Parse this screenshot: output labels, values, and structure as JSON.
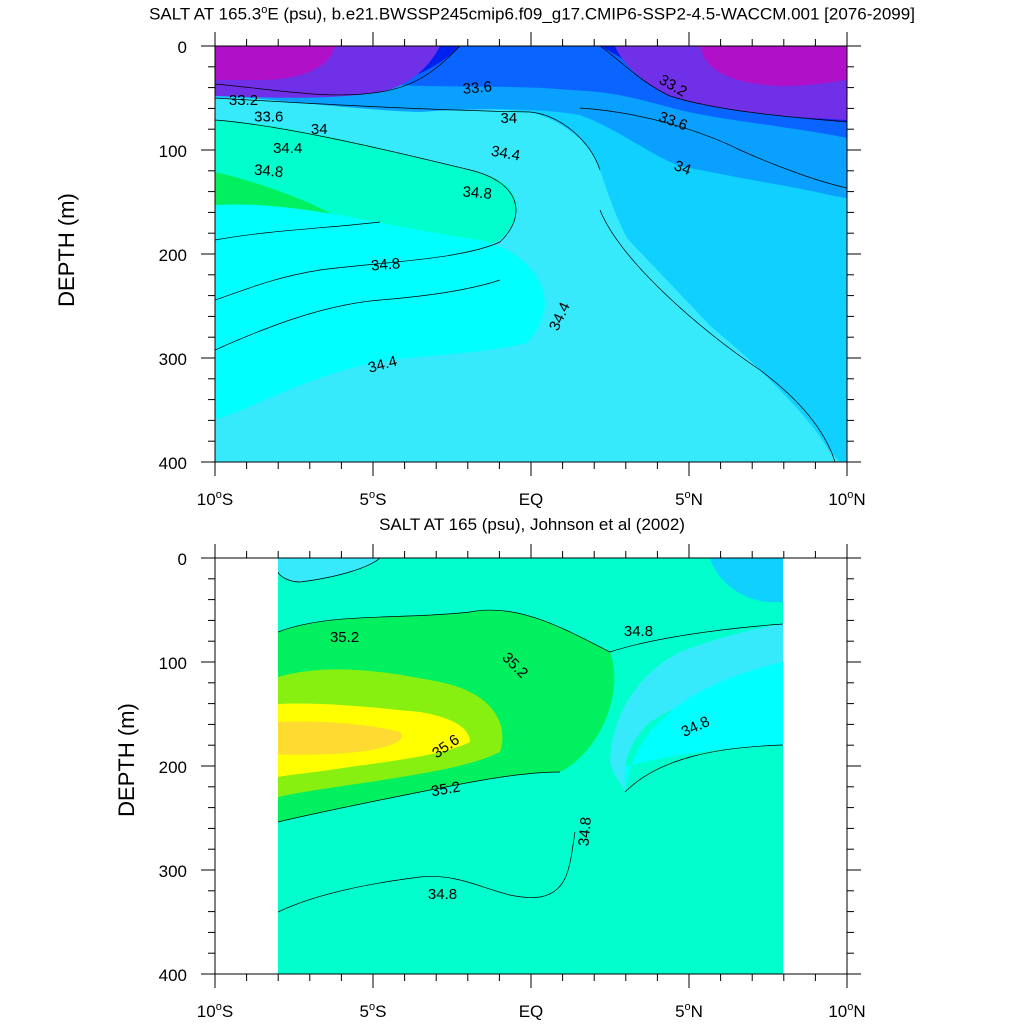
{
  "chart_data": [
    {
      "type": "contour",
      "title": "SALT AT 165.3°E (psu), b.e21.BWSSP245cmip6.f09_g17.CMIP6-SSP2-4.5-WACCM.001 [2076-2099]",
      "title_parts": {
        "pre": "SALT AT 165.3",
        "sup": "o",
        "post": "E (psu), b.e21.BWSSP245cmip6.f09_g17.CMIP6-SSP2-4.5-WACCM.001 [2076-2099]"
      },
      "ylabel": "DEPTH (m)",
      "xlabel": "",
      "xlim": [
        -10,
        10
      ],
      "ylim": [
        400,
        0
      ],
      "y_ticks": [
        "0",
        "100",
        "200",
        "300",
        "400"
      ],
      "x_ticks": [
        {
          "value": -10,
          "main": "10",
          "deg": "o",
          "hem": "S"
        },
        {
          "value": -5,
          "main": "5",
          "deg": "o",
          "hem": "S"
        },
        {
          "value": 0,
          "main": "EQ",
          "deg": "",
          "hem": ""
        },
        {
          "value": 5,
          "main": "5",
          "deg": "o",
          "hem": "N"
        },
        {
          "value": 10,
          "main": "10",
          "deg": "o",
          "hem": "N"
        }
      ],
      "contour_labels": [
        {
          "text": "33.2",
          "lat": -9.1,
          "depth": 52,
          "angle": 0
        },
        {
          "text": "33.6",
          "lat": -8.3,
          "depth": 68,
          "angle": 0
        },
        {
          "text": "34",
          "lat": -6.7,
          "depth": 80,
          "angle": 0
        },
        {
          "text": "34.4",
          "lat": -7.7,
          "depth": 98,
          "angle": 0
        },
        {
          "text": "34.8",
          "lat": -8.3,
          "depth": 120,
          "angle": 5
        },
        {
          "text": "33.6",
          "lat": -1.7,
          "depth": 40,
          "angle": -5
        },
        {
          "text": "34",
          "lat": -0.7,
          "depth": 69,
          "angle": 0
        },
        {
          "text": "34.4",
          "lat": -0.8,
          "depth": 103,
          "angle": 10
        },
        {
          "text": "34.8",
          "lat": -1.7,
          "depth": 141,
          "angle": 5
        },
        {
          "text": "33.2",
          "lat": 4.5,
          "depth": 38,
          "angle": 30
        },
        {
          "text": "33.6",
          "lat": 4.5,
          "depth": 72,
          "angle": 20
        },
        {
          "text": "34",
          "lat": 4.8,
          "depth": 117,
          "angle": 20
        },
        {
          "text": "34.8",
          "lat": -4.6,
          "depth": 210,
          "angle": -5
        },
        {
          "text": "34.4",
          "lat": 0.9,
          "depth": 260,
          "angle": -65
        },
        {
          "text": "34.4",
          "lat": -4.7,
          "depth": 306,
          "angle": -15
        }
      ],
      "levels": [
        "33.2",
        "33.6",
        "34",
        "34.4",
        "34.8"
      ]
    },
    {
      "type": "contour",
      "title": "SALT AT 165 (psu), Johnson et al (2002)",
      "ylabel": "DEPTH (m)",
      "xlabel": "",
      "xlim": [
        -10,
        10
      ],
      "ylim": [
        400,
        0
      ],
      "data_lat_range": [
        -8,
        8
      ],
      "y_ticks": [
        "0",
        "100",
        "200",
        "300",
        "400"
      ],
      "x_ticks": [
        {
          "value": -10,
          "main": "10",
          "deg": "o",
          "hem": "S"
        },
        {
          "value": -5,
          "main": "5",
          "deg": "o",
          "hem": "S"
        },
        {
          "value": 0,
          "main": "EQ",
          "deg": "",
          "hem": ""
        },
        {
          "value": 5,
          "main": "5",
          "deg": "o",
          "hem": "N"
        },
        {
          "value": 10,
          "main": "10",
          "deg": "o",
          "hem": "N"
        }
      ],
      "contour_labels": [
        {
          "text": "35.2",
          "lat": -5.9,
          "depth": 76,
          "angle": 0
        },
        {
          "text": "35.2",
          "lat": -0.5,
          "depth": 103,
          "angle": 45
        },
        {
          "text": "35.6",
          "lat": -2.7,
          "depth": 181,
          "angle": -35
        },
        {
          "text": "35.2",
          "lat": -2.7,
          "depth": 222,
          "angle": -10
        },
        {
          "text": "34.8",
          "lat": 3.4,
          "depth": 70,
          "angle": 0
        },
        {
          "text": "34.8",
          "lat": 5.2,
          "depth": 162,
          "angle": -25
        },
        {
          "text": "34.8",
          "lat": 1.7,
          "depth": 263,
          "angle": -85
        },
        {
          "text": "34.8",
          "lat": -2.8,
          "depth": 323,
          "angle": 0
        }
      ],
      "levels": [
        "34.8",
        "35.2",
        "35.6"
      ]
    }
  ],
  "colors": {
    "s32_8": "#b010c8",
    "s33_2": "#7030e8",
    "s33_6": "#0020f0",
    "s34_0": "#0aa0ff",
    "s34_4": "#10d0ff",
    "s34_8": "#36eafc",
    "s34_8b": "#00ffff",
    "s35_2": "#00ffcc",
    "s35_6": "#00f060",
    "s36_0": "#88f010",
    "s36_4": "#ffff00",
    "s36_8": "#ffda30"
  }
}
